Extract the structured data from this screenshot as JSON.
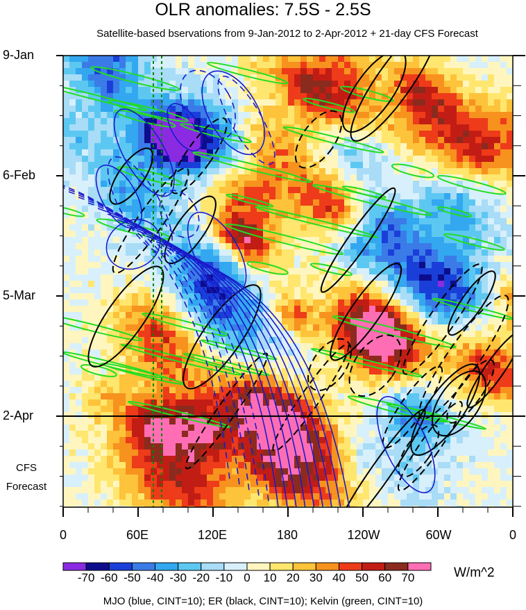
{
  "title": "OLR anomalies: 7.5S - 2.5S",
  "subtitle": "Satellite-based bservations from 9-Jan-2012 to 2-Apr-2012 + 21-day CFS Forecast",
  "forecast_label_line1": "CFS",
  "forecast_label_line2": "Forecast",
  "units": "W/m^2",
  "footnote": "MJO (blue, CINT=10); ER (black, CINT=10); Kelvin (green, CINT=10)",
  "colors": {
    "mjo": "#1a1acc",
    "er": "#000000",
    "kelvin": "#22dd22",
    "mjo_index_line": "#008800"
  },
  "chart_data": {
    "type": "heatmap",
    "title": "OLR anomalies: 7.5S - 2.5S",
    "xlabel": "",
    "ylabel": "",
    "x_ticks": [
      "0",
      "60E",
      "120E",
      "180",
      "120W",
      "60W",
      "0"
    ],
    "x_range_deg_east": [
      0,
      360
    ],
    "y_ticks": [
      "9-Jan",
      "6-Feb",
      "5-Mar",
      "2-Apr"
    ],
    "observation_end": "2-Apr",
    "forecast_days": 21,
    "colorbar": {
      "labels": [
        "-70",
        "-60",
        "-50",
        "-40",
        "-30",
        "-20",
        "-10",
        "0",
        "10",
        "20",
        "30",
        "40",
        "50",
        "60",
        "70"
      ],
      "colors": [
        "#8a2be2",
        "#0d0d8c",
        "#1a3fd9",
        "#3b7be8",
        "#33a7ef",
        "#5cc8f2",
        "#a8dcf7",
        "#d8f0fb",
        "#fff6bf",
        "#ffe66e",
        "#fdc33a",
        "#f7921e",
        "#ee3b1a",
        "#c21d14",
        "#8a2b1e",
        "#ff6eb4"
      ]
    },
    "overlays": [
      "MJO (blue, CINT=10)",
      "ER (black, CINT=10)",
      "Kelvin (green, CINT=10)"
    ]
  }
}
